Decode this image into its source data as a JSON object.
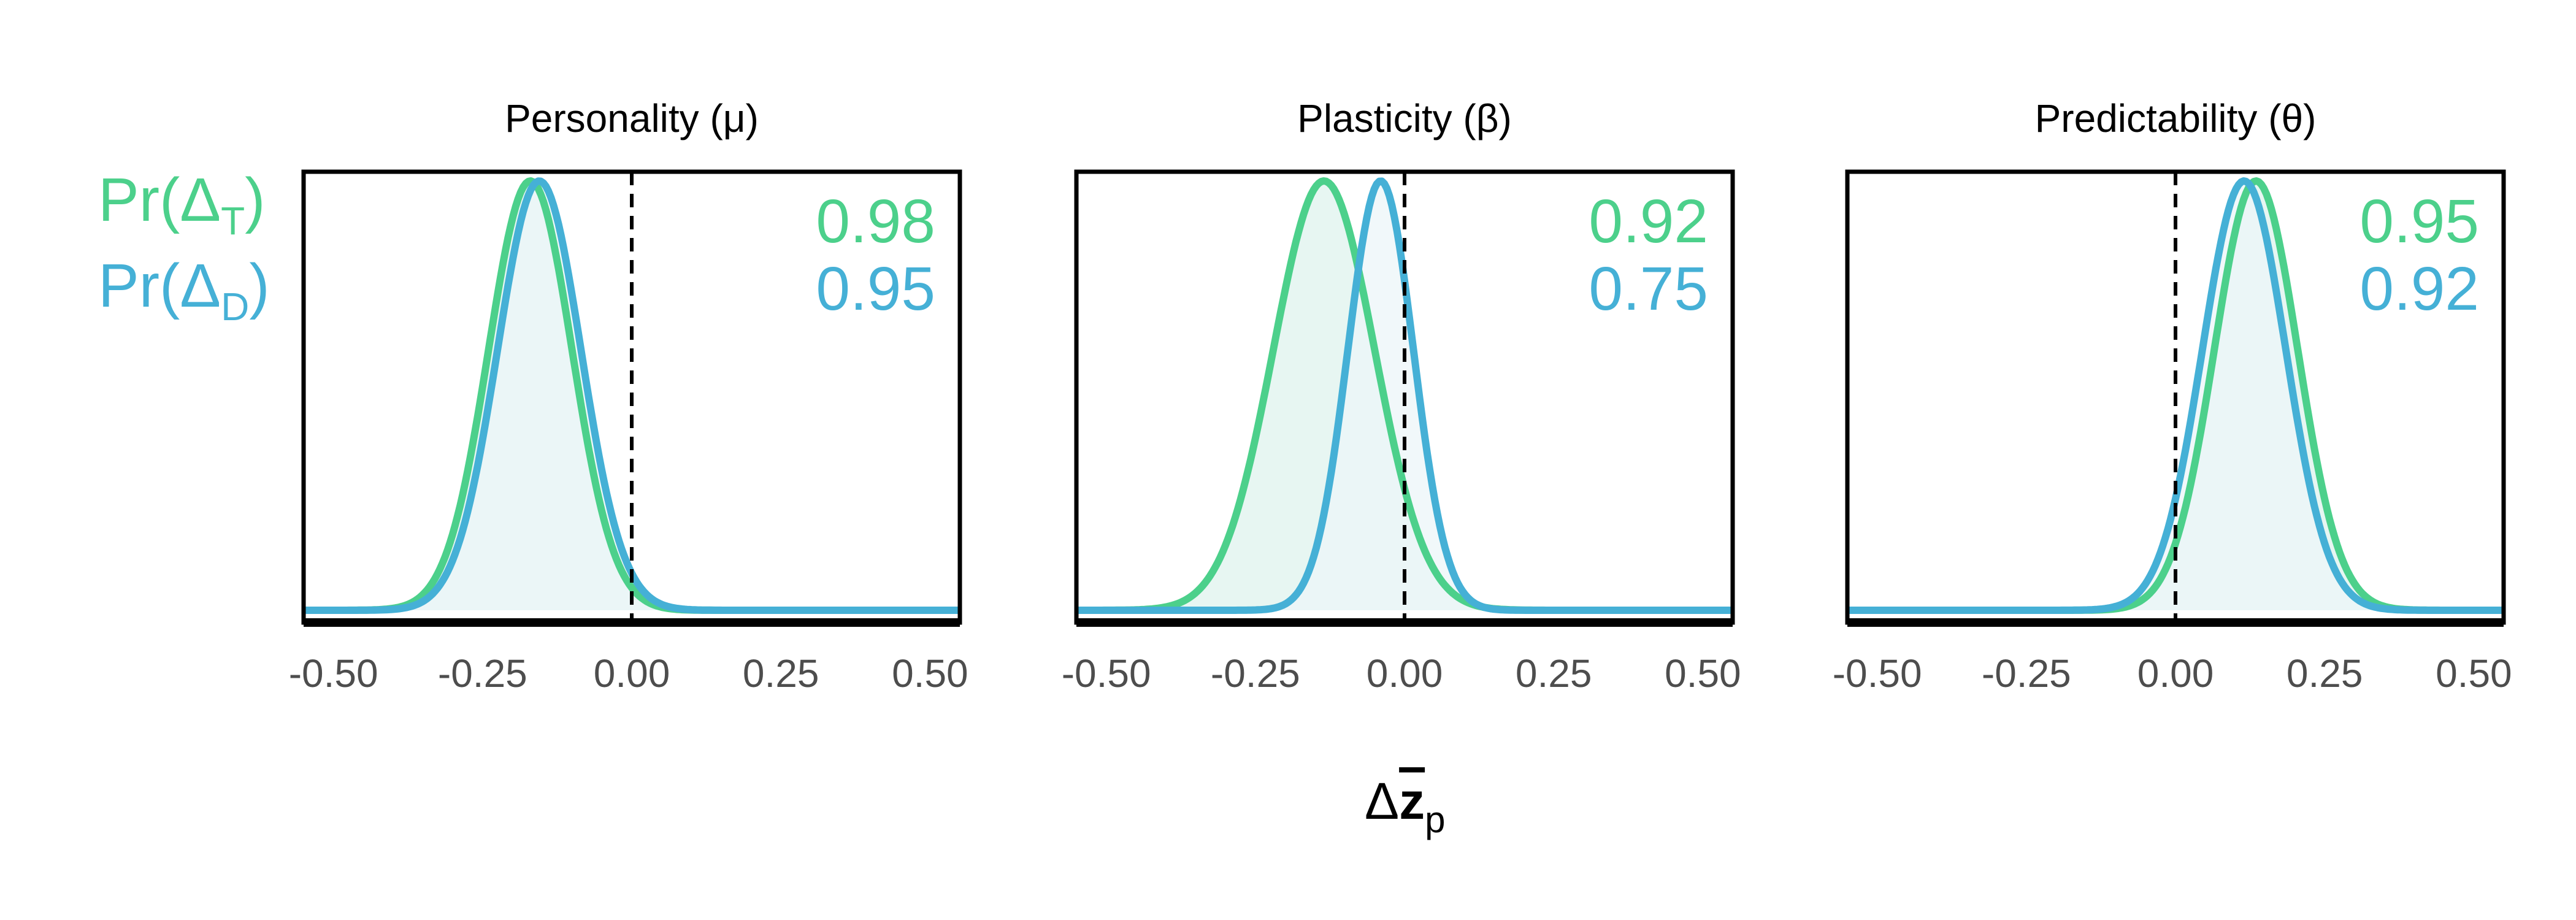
{
  "colors": {
    "treatment": "#4cd08b",
    "drug": "#45b0d6",
    "treatment_fill": "#dff3ee",
    "drug_fill": "#ecf5f8"
  },
  "legend": {
    "treatment": {
      "main": "Pr(Δ",
      "sub": "T",
      "close": ")"
    },
    "drug": {
      "main": "Pr(Δ",
      "sub": "D",
      "close": ")"
    }
  },
  "xlabel": {
    "main": "Δ",
    "bar": "z",
    "sub": "p"
  },
  "chart_data": [
    {
      "type": "area",
      "title": "Personality (μ)",
      "xlim": [
        -0.55,
        0.55
      ],
      "x_ticks": [
        "-0.50",
        "-0.25",
        "0.00",
        "0.25",
        "0.50"
      ],
      "ref_line_x": 0.0,
      "series": [
        {
          "key": "treatment",
          "mean": -0.17,
          "sd": 0.07,
          "probability": "0.98"
        },
        {
          "key": "drug",
          "mean": -0.155,
          "sd": 0.07,
          "probability": "0.95"
        }
      ]
    },
    {
      "type": "area",
      "title": "Plasticity (β)",
      "xlim": [
        -0.55,
        0.55
      ],
      "x_ticks": [
        "-0.50",
        "-0.25",
        "0.00",
        "0.25",
        "0.50"
      ],
      "ref_line_x": 0.0,
      "series": [
        {
          "key": "treatment",
          "mean": -0.135,
          "sd": 0.085,
          "probability": "0.92"
        },
        {
          "key": "drug",
          "mean": -0.04,
          "sd": 0.055,
          "probability": "0.75"
        }
      ]
    },
    {
      "type": "area",
      "title": "Predictability (θ)",
      "xlim": [
        -0.55,
        0.55
      ],
      "x_ticks": [
        "-0.50",
        "-0.25",
        "0.00",
        "0.25",
        "0.50"
      ],
      "ref_line_x": 0.0,
      "series": [
        {
          "key": "treatment",
          "mean": 0.135,
          "sd": 0.07,
          "probability": "0.95"
        },
        {
          "key": "drug",
          "mean": 0.115,
          "sd": 0.07,
          "probability": "0.92"
        }
      ]
    }
  ]
}
